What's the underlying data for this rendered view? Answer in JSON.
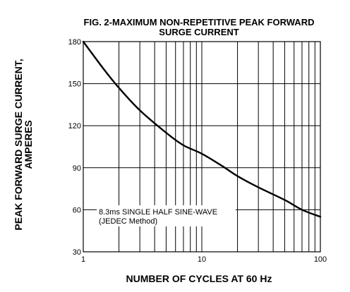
{
  "chart_data": {
    "type": "line",
    "title_line1": "FIG. 2-MAXIMUM NON-REPETITIVE PEAK FORWARD",
    "title_line2": "SURGE CURRENT",
    "xlabel": "NUMBER OF CYCLES AT 60 Hz",
    "ylabel_line1": "PEAK  FORWARD SURGE CURRENT,",
    "ylabel_line2": "AMPERES",
    "x_scale": "log",
    "xlim": [
      1,
      100
    ],
    "ylim": [
      30,
      180
    ],
    "x_ticks": [
      1,
      10,
      100
    ],
    "x_tick_labels": [
      "1",
      "10",
      "100"
    ],
    "y_ticks": [
      30,
      60,
      90,
      120,
      150,
      180
    ],
    "y_tick_labels": [
      "30",
      "60",
      "90",
      "120",
      "150",
      "180"
    ],
    "grid": true,
    "annotation_line1": "8.3ms SINGLE HALF SINE-WAVE",
    "annotation_line2": "(JEDEC Method)",
    "series": [
      {
        "x": [
          1,
          1.5,
          2,
          3,
          5,
          7,
          10,
          15,
          20,
          30,
          50,
          70,
          100
        ],
        "y": [
          180,
          160,
          147,
          131,
          115,
          106,
          100,
          91,
          84,
          76,
          67,
          60,
          55
        ]
      }
    ]
  }
}
